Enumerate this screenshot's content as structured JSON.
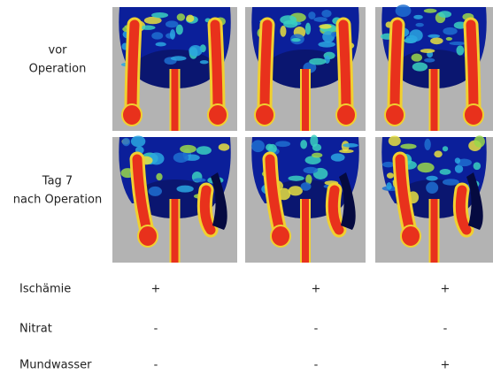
{
  "image_rows": [
    {
      "label_lines": [
        "vor",
        "Operation"
      ]
    },
    {
      "label_lines": [
        "Tag 7",
        "nach Operation"
      ]
    }
  ],
  "table": {
    "rows": [
      {
        "label": "Ischämie",
        "values": [
          "+",
          "+",
          "+"
        ]
      },
      {
        "label": "Nitrat",
        "values": [
          "-",
          "-",
          "-"
        ]
      },
      {
        "label": "Mundwasser",
        "values": [
          "-",
          "-",
          "+"
        ]
      }
    ]
  }
}
